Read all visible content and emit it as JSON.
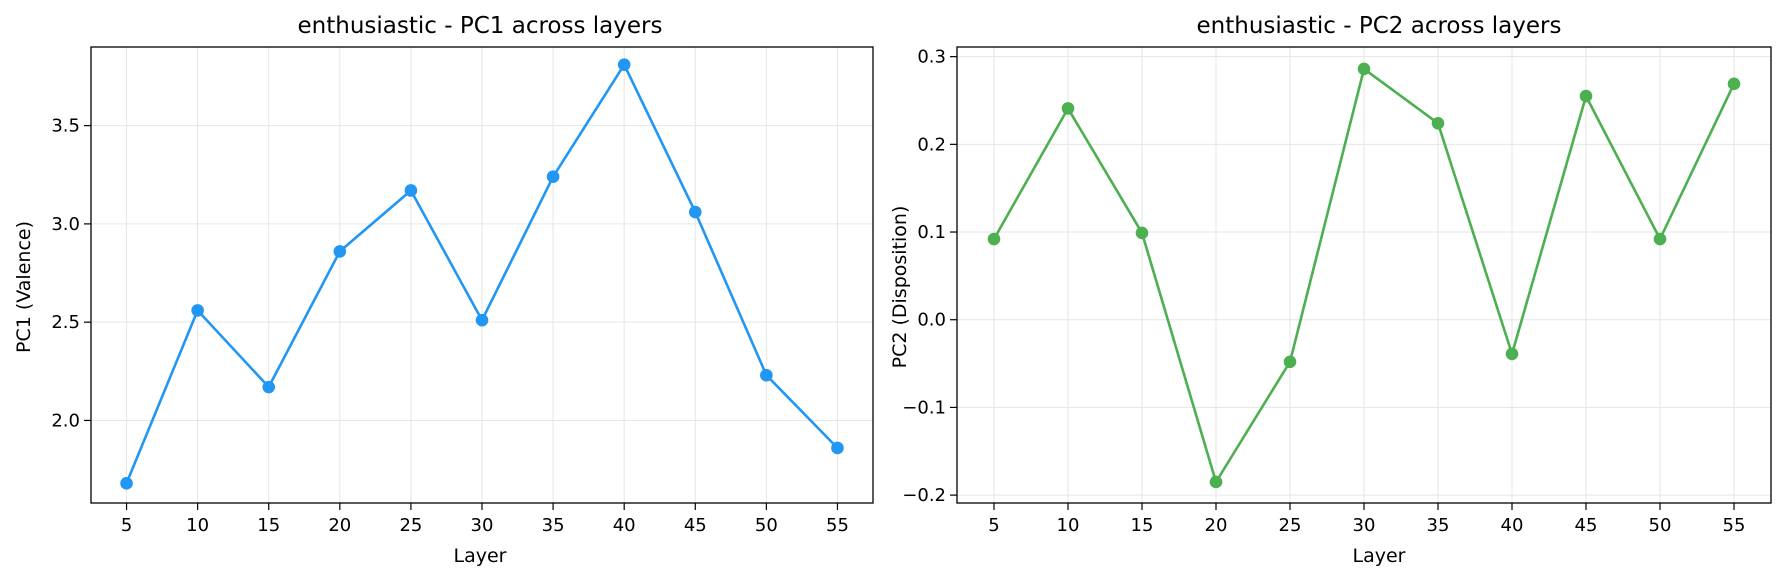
{
  "chart_data": [
    {
      "type": "line",
      "title": "enthusiastic - PC1 across layers",
      "xlabel": "Layer",
      "ylabel": "PC1 (Valence)",
      "x": [
        5,
        10,
        15,
        20,
        25,
        30,
        35,
        40,
        45,
        50,
        55
      ],
      "xticks": [
        "5",
        "10",
        "15",
        "20",
        "25",
        "30",
        "35",
        "40",
        "45",
        "50",
        "55"
      ],
      "yticks": [
        "2.0",
        "2.5",
        "3.0",
        "3.5"
      ],
      "ylim": [
        1.58,
        3.9
      ],
      "xlim": [
        2.5,
        57.5
      ],
      "grid": true,
      "series": [
        {
          "values": [
            1.68,
            2.56,
            2.17,
            2.86,
            3.17,
            2.51,
            3.24,
            3.81,
            3.06,
            2.23,
            1.86
          ],
          "color": "#2196f3"
        }
      ]
    },
    {
      "type": "line",
      "title": "enthusiastic - PC2 across layers",
      "xlabel": "Layer",
      "ylabel": "PC2 (Disposition)",
      "x": [
        5,
        10,
        15,
        20,
        25,
        30,
        35,
        40,
        45,
        50,
        55
      ],
      "xticks": [
        "5",
        "10",
        "15",
        "20",
        "25",
        "30",
        "35",
        "40",
        "45",
        "50",
        "55"
      ],
      "yticks": [
        "−0.2",
        "−0.1",
        "0.0",
        "0.1",
        "0.2",
        "0.3"
      ],
      "ylim": [
        -0.209,
        0.311
      ],
      "xlim": [
        2.5,
        57.5
      ],
      "grid": true,
      "series": [
        {
          "values": [
            0.092,
            0.241,
            0.099,
            -0.185,
            -0.048,
            0.286,
            0.224,
            -0.039,
            0.255,
            0.092,
            0.269
          ],
          "color": "#4caf50"
        }
      ]
    }
  ]
}
